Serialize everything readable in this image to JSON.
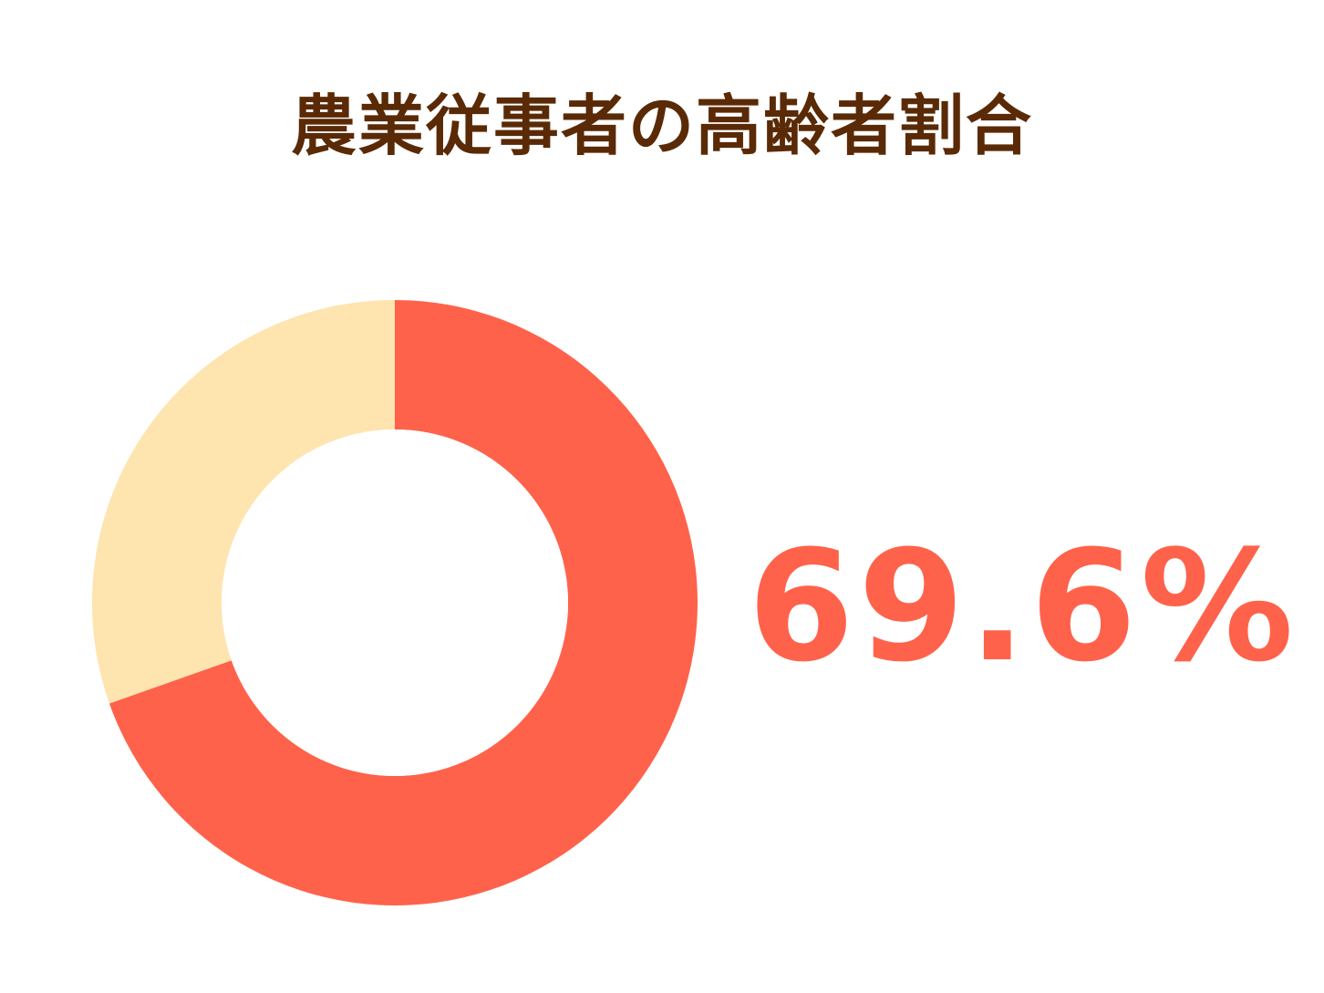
{
  "chart_data": {
    "type": "pie",
    "donut": true,
    "title": "農業従事者の高齢者割合",
    "slices": [
      {
        "value": 69.6,
        "color": "#ff624a"
      },
      {
        "value": 30.4,
        "color": "#fee4ae"
      }
    ],
    "highlight_label": "69.6%"
  },
  "colors": {
    "title": "#5a2a06",
    "accent": "#ff624a",
    "remainder": "#fee4ae",
    "background": "#ffffff"
  }
}
